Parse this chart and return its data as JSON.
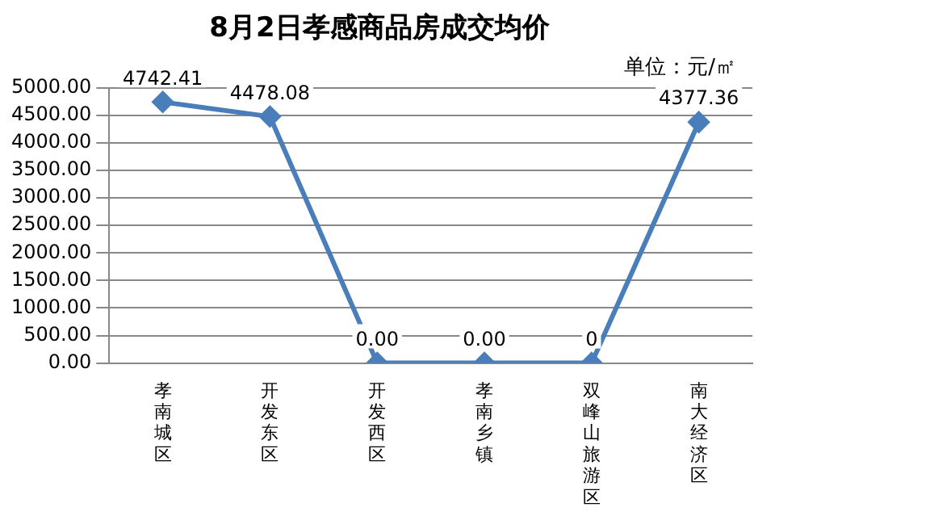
{
  "chart_data": {
    "type": "line",
    "title": "8月2日孝感商品房成交均价",
    "annotations": [
      "单位：元/㎡"
    ],
    "categories": [
      "孝南城区",
      "开发东区",
      "开发西区",
      "孝南乡镇",
      "双峰山旅游区",
      "南大经济区"
    ],
    "series": [
      {
        "color": "#4a7ebb",
        "values": [
          4742.41,
          4478.08,
          0,
          0,
          0,
          4377.36
        ],
        "value_labels": [
          "4742.41",
          "4478.08",
          "0.00",
          "0.00",
          "0",
          "4377.36"
        ]
      }
    ],
    "ylim": [
      0,
      5000
    ],
    "yticks": [
      {
        "value": 0,
        "label": "0.00"
      },
      {
        "value": 500,
        "label": "500.00"
      },
      {
        "value": 1000,
        "label": "1000.00"
      },
      {
        "value": 1500,
        "label": "1500.00"
      },
      {
        "value": 2000,
        "label": "2000.00"
      },
      {
        "value": 2500,
        "label": "2500.00"
      },
      {
        "value": 3000,
        "label": "3000.00"
      },
      {
        "value": 3500,
        "label": "3500.00"
      },
      {
        "value": 4000,
        "label": "4000.00"
      },
      {
        "value": 4500,
        "label": "4500.00"
      },
      {
        "value": 5000,
        "label": "5000.00"
      }
    ],
    "grid": "y",
    "legend": false,
    "marker": "diamond",
    "line_style": "solid"
  }
}
